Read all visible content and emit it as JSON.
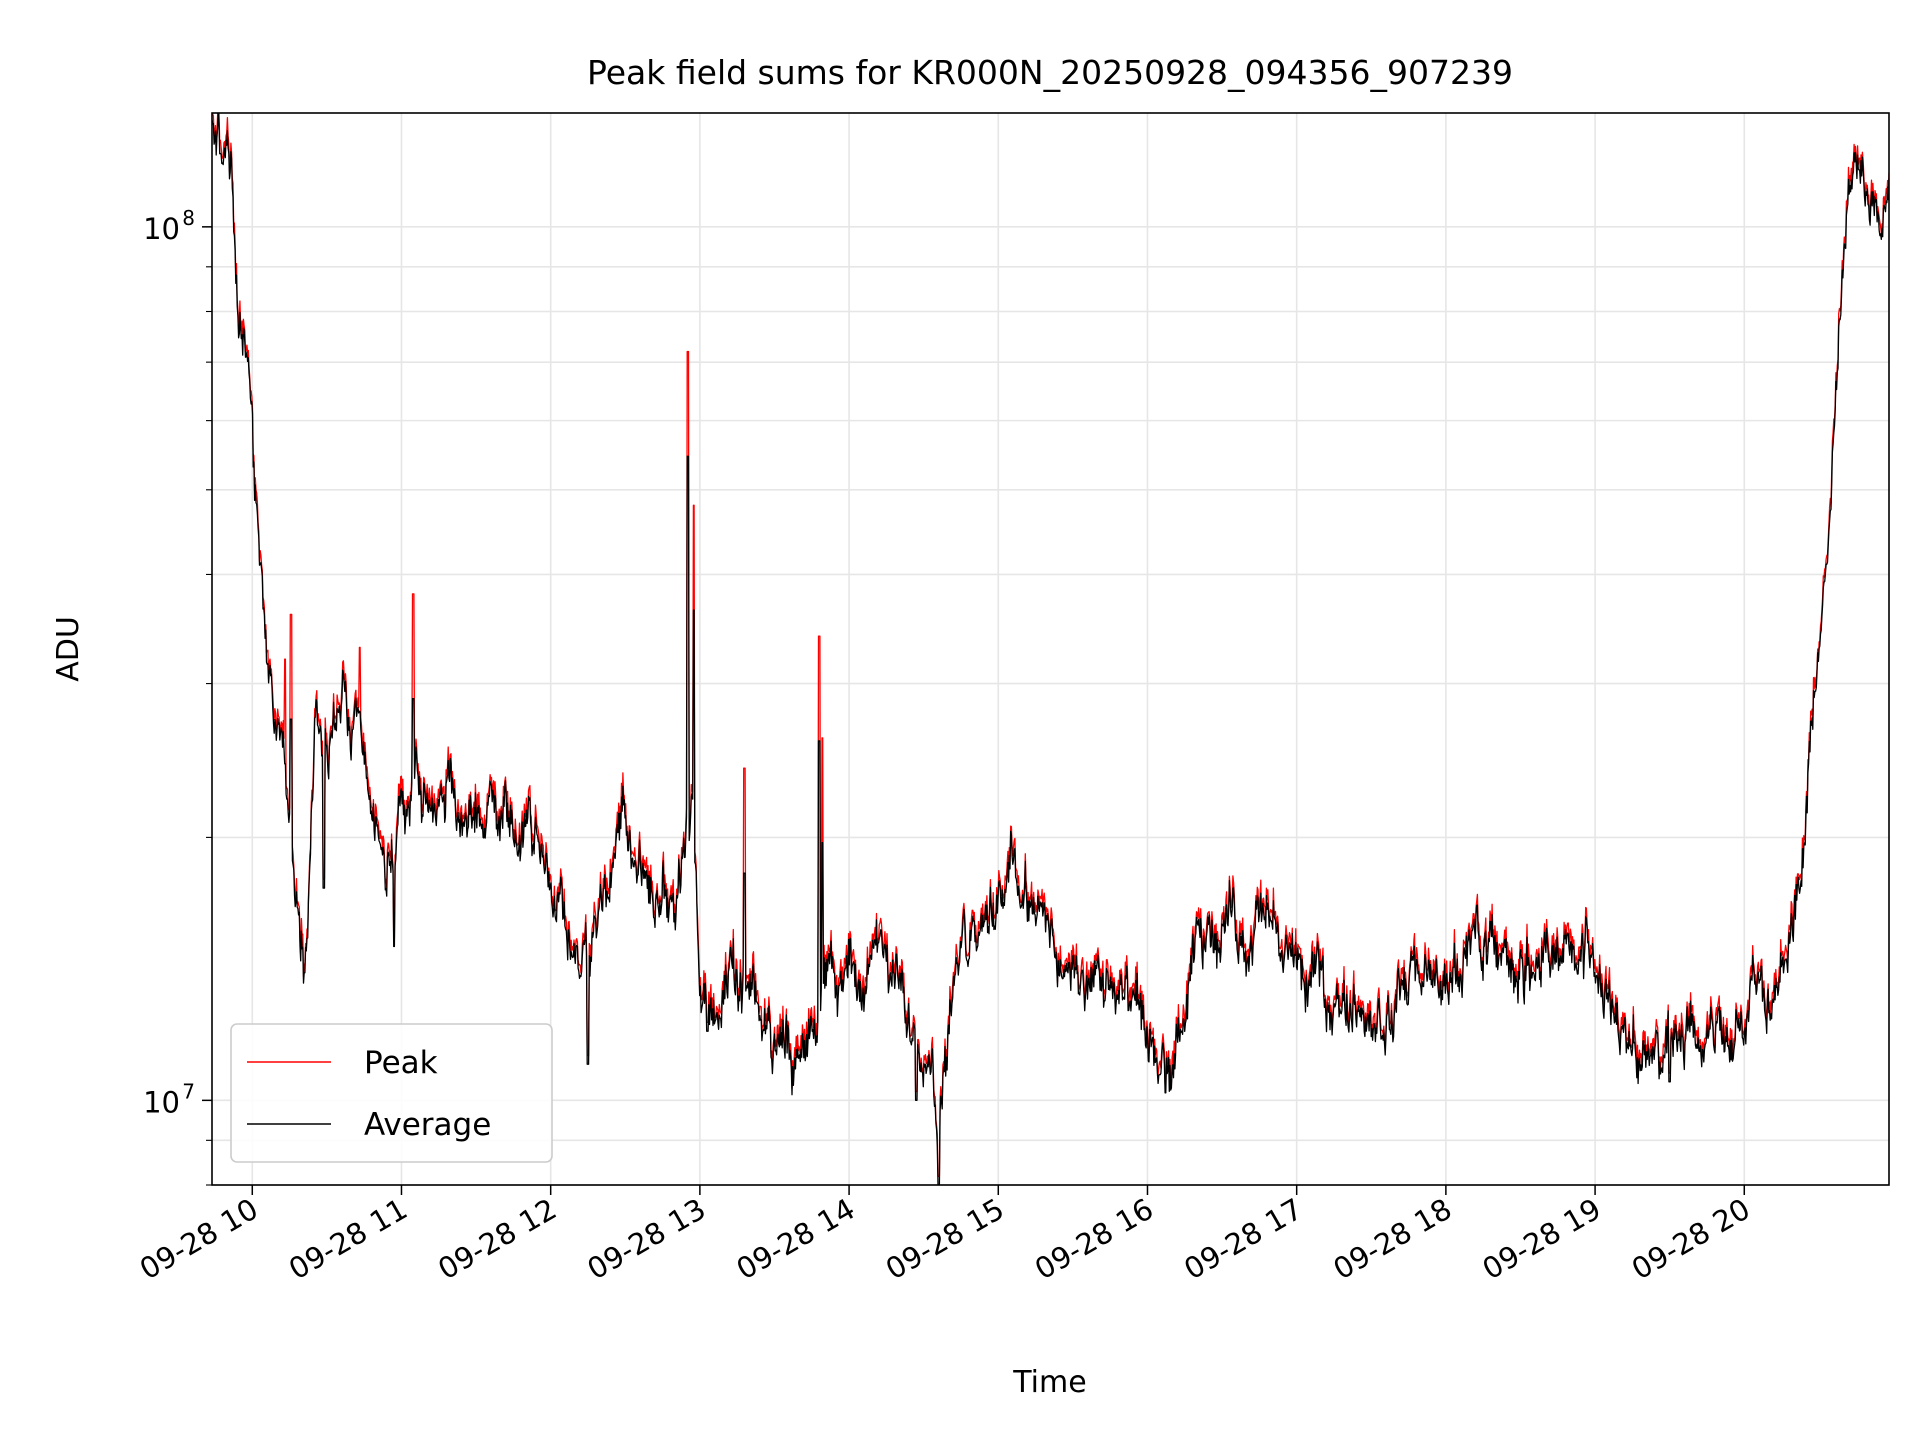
{
  "chart_data": {
    "type": "line",
    "title": "Peak field sums for KR000N_20250928_094356_907239",
    "xlabel": "Time",
    "ylabel": "ADU",
    "yscale": "log",
    "xlim_hours": [
      9.73,
      20.97
    ],
    "ylim": [
      8000000,
      135000000
    ],
    "grid": true,
    "legend_location": "lower-left",
    "x_ticks": [
      {
        "label": "09-28 10",
        "hour": 10
      },
      {
        "label": "09-28 11",
        "hour": 11
      },
      {
        "label": "09-28 12",
        "hour": 12
      },
      {
        "label": "09-28 13",
        "hour": 13
      },
      {
        "label": "09-28 14",
        "hour": 14
      },
      {
        "label": "09-28 15",
        "hour": 15
      },
      {
        "label": "09-28 16",
        "hour": 16
      },
      {
        "label": "09-28 17",
        "hour": 17
      },
      {
        "label": "09-28 18",
        "hour": 18
      },
      {
        "label": "09-28 19",
        "hour": 19
      },
      {
        "label": "09-28 20",
        "hour": 20
      }
    ],
    "y_ticks": [
      {
        "base": "10",
        "exp": "7",
        "value": 10000000
      },
      {
        "base": "10",
        "exp": "8",
        "value": 100000000
      }
    ],
    "series": [
      {
        "name": "Peak",
        "color": "#ff0000"
      },
      {
        "name": "Average",
        "color": "#000000"
      }
    ],
    "average_anchors": [
      [
        9.73,
        128000000
      ],
      [
        9.78,
        124000000
      ],
      [
        9.85,
        118000000
      ],
      [
        9.9,
        82000000
      ],
      [
        9.97,
        65000000
      ],
      [
        10.02,
        48000000
      ],
      [
        10.08,
        38000000
      ],
      [
        10.14,
        28000000
      ],
      [
        10.2,
        26000000
      ],
      [
        10.25,
        21000000
      ],
      [
        10.3,
        18000000
      ],
      [
        10.35,
        15000000
      ],
      [
        10.42,
        27000000
      ],
      [
        10.5,
        25000000
      ],
      [
        10.6,
        28000000
      ],
      [
        10.7,
        26000000
      ],
      [
        10.8,
        21000000
      ],
      [
        10.9,
        18000000
      ],
      [
        11.0,
        21000000
      ],
      [
        11.1,
        23000000
      ],
      [
        11.2,
        22000000
      ],
      [
        11.4,
        21500000
      ],
      [
        11.6,
        21000000
      ],
      [
        11.8,
        20000000
      ],
      [
        11.95,
        19500000
      ],
      [
        12.05,
        17000000
      ],
      [
        12.15,
        15000000
      ],
      [
        12.25,
        14500000
      ],
      [
        12.4,
        18500000
      ],
      [
        12.5,
        20500000
      ],
      [
        12.6,
        18500000
      ],
      [
        12.7,
        16500000
      ],
      [
        12.85,
        17500000
      ],
      [
        12.95,
        21000000
      ],
      [
        13.0,
        13000000
      ],
      [
        13.1,
        13300000
      ],
      [
        13.2,
        13500000
      ],
      [
        13.35,
        12800000
      ],
      [
        13.5,
        11500000
      ],
      [
        13.65,
        11500000
      ],
      [
        13.75,
        13000000
      ],
      [
        13.85,
        13500000
      ],
      [
        14.0,
        14000000
      ],
      [
        14.2,
        14500000
      ],
      [
        14.35,
        13000000
      ],
      [
        14.45,
        12500000
      ],
      [
        14.55,
        11500000
      ],
      [
        14.6,
        9200000
      ],
      [
        14.7,
        13500000
      ],
      [
        14.8,
        15500000
      ],
      [
        14.9,
        16500000
      ],
      [
        15.0,
        17500000
      ],
      [
        15.1,
        18500000
      ],
      [
        15.25,
        16500000
      ],
      [
        15.4,
        14500000
      ],
      [
        15.55,
        13500000
      ],
      [
        15.75,
        13000000
      ],
      [
        15.95,
        12500000
      ],
      [
        16.05,
        11000000
      ],
      [
        16.15,
        10500000
      ],
      [
        16.25,
        12500000
      ],
      [
        16.35,
        15000000
      ],
      [
        16.5,
        16500000
      ],
      [
        16.65,
        15500000
      ],
      [
        16.8,
        16000000
      ],
      [
        16.95,
        14500000
      ],
      [
        17.1,
        13500000
      ],
      [
        17.3,
        13000000
      ],
      [
        17.5,
        12800000
      ],
      [
        17.6,
        12000000
      ],
      [
        17.8,
        13800000
      ],
      [
        18.0,
        13800000
      ],
      [
        18.15,
        14500000
      ],
      [
        18.3,
        15500000
      ],
      [
        18.45,
        14000000
      ],
      [
        18.6,
        15000000
      ],
      [
        18.8,
        14500000
      ],
      [
        18.95,
        14800000
      ],
      [
        19.05,
        13500000
      ],
      [
        19.15,
        12000000
      ],
      [
        19.3,
        11500000
      ],
      [
        19.45,
        11200000
      ],
      [
        19.6,
        11300000
      ],
      [
        19.75,
        11800000
      ],
      [
        19.9,
        12300000
      ],
      [
        20.1,
        13000000
      ],
      [
        20.25,
        14200000
      ],
      [
        20.35,
        16500000
      ],
      [
        20.42,
        22000000
      ],
      [
        20.5,
        33000000
      ],
      [
        20.58,
        50000000
      ],
      [
        20.65,
        82000000
      ],
      [
        20.72,
        112000000
      ],
      [
        20.76,
        118000000
      ],
      [
        20.82,
        106000000
      ],
      [
        20.9,
        104000000
      ],
      [
        20.97,
        102000000
      ]
    ],
    "peak_spikes": [
      [
        10.22,
        32000000
      ],
      [
        10.26,
        36000000
      ],
      [
        10.72,
        33000000
      ],
      [
        11.08,
        38000000
      ],
      [
        12.92,
        72000000
      ],
      [
        12.96,
        48000000
      ],
      [
        13.3,
        24000000
      ],
      [
        13.8,
        34000000
      ],
      [
        13.82,
        26000000
      ]
    ],
    "average_dips": [
      [
        10.35,
        14000000
      ],
      [
        10.48,
        17500000
      ],
      [
        10.95,
        15000000
      ],
      [
        12.25,
        11000000
      ],
      [
        13.05,
        12000000
      ],
      [
        14.45,
        10000000
      ],
      [
        14.6,
        8000000
      ],
      [
        16.12,
        10200000
      ],
      [
        19.5,
        10500000
      ]
    ]
  }
}
